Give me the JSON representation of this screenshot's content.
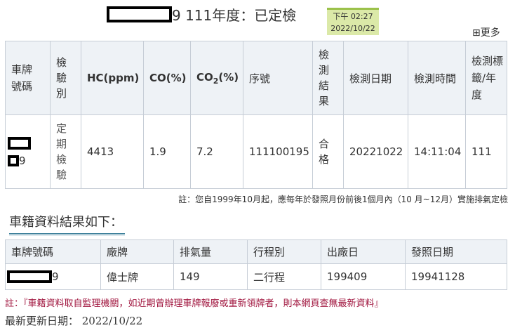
{
  "header": {
    "title_suffix": "9 111年度：已定檢",
    "badge_time": "下午 02:27",
    "badge_date": "2022/10/22",
    "more_label": "⊞更多"
  },
  "inspection_table": {
    "headers": [
      "車牌號碼",
      "檢驗別",
      "HC(ppm)",
      "CO(%)",
      "CO",
      "2",
      "(%)",
      "序號",
      "檢測結果",
      "檢測日期",
      "檢測時間",
      "檢測標籤/年度"
    ],
    "row": {
      "plate_suffix": "9",
      "type": "定期檢驗",
      "hc": "4413",
      "co": "1.9",
      "co2": "7.2",
      "serial": "111100195",
      "result": "合格",
      "date": "20221022",
      "time": "14:11:04",
      "label_year": "111"
    }
  },
  "note1": "註：您自1999年10月起，應每年於發照月份前後1個月內（10 月~12月）實施排氣定檢",
  "section_title": "車籍資料結果如下：",
  "vehicle_table": {
    "headers": [
      "車牌號碼",
      "廠牌",
      "排氣量",
      "行程別",
      "出廠日",
      "發照日期"
    ],
    "row": {
      "plate_suffix": "9",
      "brand": "偉士牌",
      "displacement": "149",
      "stroke": "二行程",
      "manufacture": "199409",
      "issue_date": "19941128"
    }
  },
  "note2": "註：『車籍資料取自監理機關，如近期曾辦理車牌報廢或重新領牌者，則本網頁查無最新資料』",
  "updated": "最新更新日期： 2022/10/22"
}
